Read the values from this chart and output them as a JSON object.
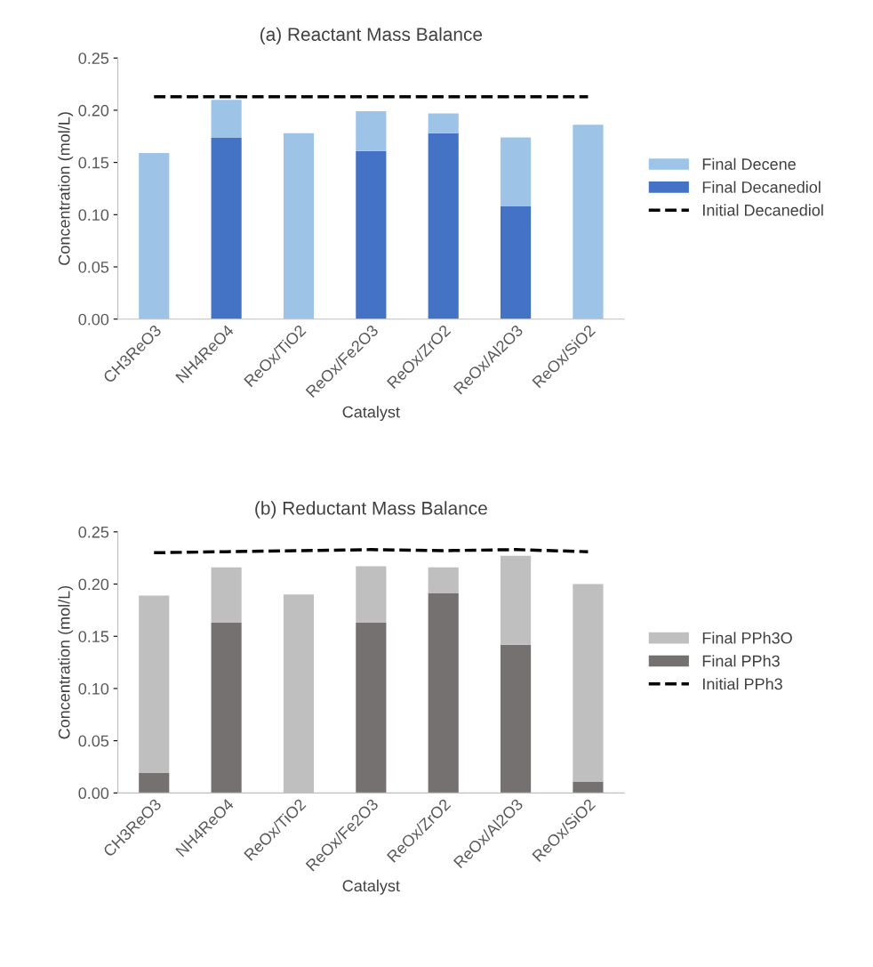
{
  "chart_data": [
    {
      "type": "bar",
      "title": "(a) Reactant Mass Balance",
      "xlabel": "Catalyst",
      "ylabel": "Concentration (mol/L)",
      "stacked": true,
      "legend": "right",
      "grid": false,
      "categories": [
        "CH3ReO3",
        "NH4ReO4",
        "ReOx/TiO2",
        "ReOx/Fe2O3",
        "ReOx/ZrO2",
        "ReOx/Al2O3",
        "ReOx/SiO2"
      ],
      "ylim": [
        0,
        0.25
      ],
      "yticks": [
        {
          "value": 0,
          "label": "0.00"
        },
        {
          "value": 0.05,
          "label": "0.05"
        },
        {
          "value": 0.1,
          "label": "0.10"
        },
        {
          "value": 0.15,
          "label": "0.15"
        },
        {
          "value": 0.2,
          "label": "0.20"
        },
        {
          "value": 0.25,
          "label": "0.25"
        }
      ],
      "series": [
        {
          "name": "Final Decanediol",
          "color": "#4472c4",
          "values": [
            0,
            0.174,
            0,
            0.161,
            0.178,
            0.108,
            0
          ]
        },
        {
          "name": "Final Decene",
          "color": "#9dc3e6",
          "values": [
            0.159,
            0.036,
            0.178,
            0.038,
            0.019,
            0.066,
            0.186
          ]
        },
        {
          "name": "Initial Decanediol",
          "type": "line",
          "color": "#000000",
          "line_style": "dashed",
          "values": [
            0.213,
            0.213,
            0.213,
            0.213,
            0.213,
            0.213,
            0.213
          ]
        }
      ]
    },
    {
      "type": "bar",
      "title": "(b) Reductant Mass Balance",
      "xlabel": "Catalyst",
      "ylabel": "Concentration (mol/L)",
      "stacked": true,
      "legend": "right",
      "grid": false,
      "categories": [
        "CH3ReO3",
        "NH4ReO4",
        "ReOx/TiO2",
        "ReOx/Fe2O3",
        "ReOx/ZrO2",
        "ReOx/Al2O3",
        "ReOx/SiO2"
      ],
      "ylim": [
        0,
        0.25
      ],
      "yticks": [
        {
          "value": 0,
          "label": "0.00"
        },
        {
          "value": 0.05,
          "label": "0.05"
        },
        {
          "value": 0.1,
          "label": "0.10"
        },
        {
          "value": 0.15,
          "label": "0.15"
        },
        {
          "value": 0.2,
          "label": "0.20"
        },
        {
          "value": 0.25,
          "label": "0.25"
        }
      ],
      "series": [
        {
          "name": "Final PPh3",
          "color": "#767171",
          "values": [
            0.019,
            0.163,
            0,
            0.163,
            0.191,
            0.142,
            0.011
          ]
        },
        {
          "name": "Final PPh3O",
          "color": "#bfbfbf",
          "values": [
            0.17,
            0.053,
            0.19,
            0.054,
            0.025,
            0.085,
            0.189
          ]
        },
        {
          "name": "Initial PPh3",
          "type": "line",
          "color": "#000000",
          "line_style": "dashed",
          "values": [
            0.23,
            0.231,
            0.232,
            0.233,
            0.232,
            0.233,
            0.231
          ]
        }
      ]
    }
  ]
}
